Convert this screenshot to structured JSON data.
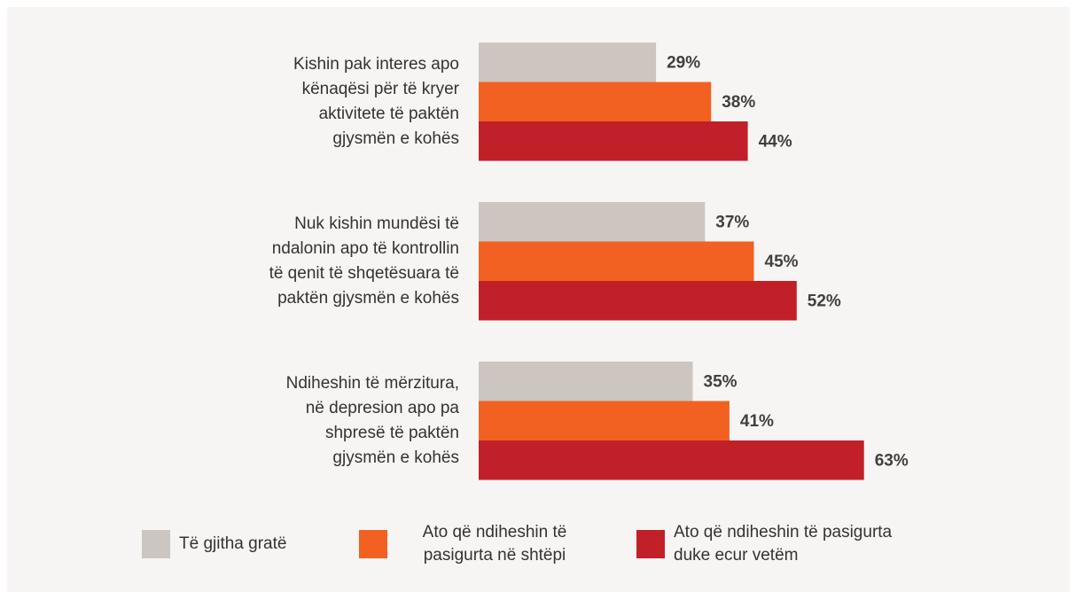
{
  "chart_data": {
    "type": "hbar",
    "categories": [
      "Kishin pak interes apo\nkënaqësi për të kryer\naktivitete të paktën\ngjysmën e kohës",
      "Nuk kishin mundësi të\nndalonin apo të kontrollin\ntë qenit të shqetësuara të\npaktën gjysmën e kohës",
      "Ndiheshin të mërzitura,\nnë depresion apo pa\nshpresë të paktën\ngjysmën e kohës"
    ],
    "series": [
      {
        "name": "Të gjitha gratë",
        "color": "#cdc5bf",
        "values": [
          29,
          37,
          35
        ],
        "value_labels": [
          "29%",
          "37%",
          "35%"
        ]
      },
      {
        "name": "Ato që ndiheshin të\npasigurta në shtëpi",
        "color": "#f26122",
        "values": [
          38,
          45,
          41
        ],
        "value_labels": [
          "38%",
          "45%",
          "41%"
        ]
      },
      {
        "name": "Ato që ndiheshin të pasigurta\nduke ecur vetëm",
        "color": "#c12028",
        "values": [
          44,
          52,
          63
        ],
        "value_labels": [
          "44%",
          "52%",
          "63%"
        ]
      }
    ],
    "xlim": [
      0,
      70
    ],
    "legend": "bottom"
  }
}
